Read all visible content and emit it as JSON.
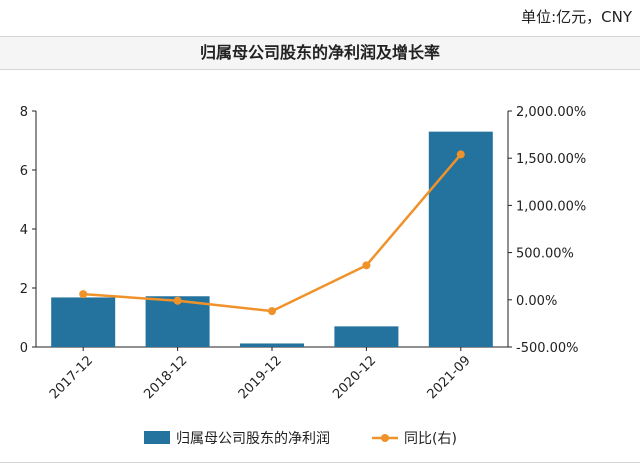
{
  "unit_label": "单位:亿元，CNY",
  "colors": {
    "bar": "#23739e",
    "line": "#f0922a",
    "axis": "#222222"
  },
  "chart_data": {
    "type": "bar",
    "title": "归属母公司股东的净利润及增长率",
    "categories": [
      "2017-12",
      "2018-12",
      "2019-12",
      "2020-12",
      "2021-09"
    ],
    "series": [
      {
        "name": "归属母公司股东的净利润",
        "type": "bar",
        "axis": "left",
        "values": [
          1.68,
          1.72,
          0.12,
          0.7,
          7.3
        ]
      },
      {
        "name": "同比(右)",
        "type": "line",
        "axis": "right",
        "values": [
          60,
          -10,
          -120,
          365,
          1540
        ]
      }
    ],
    "y_left": {
      "min": 0,
      "max": 8,
      "ticks": [
        "0",
        "2",
        "4",
        "6",
        "8"
      ]
    },
    "y_right": {
      "min": -500,
      "max": 2000,
      "ticks": [
        "-500.00%",
        "0.00%",
        "500.00%",
        "1,000.00%",
        "1,500.00%",
        "2,000.00%"
      ]
    },
    "grid": false,
    "legend": "bottom"
  }
}
